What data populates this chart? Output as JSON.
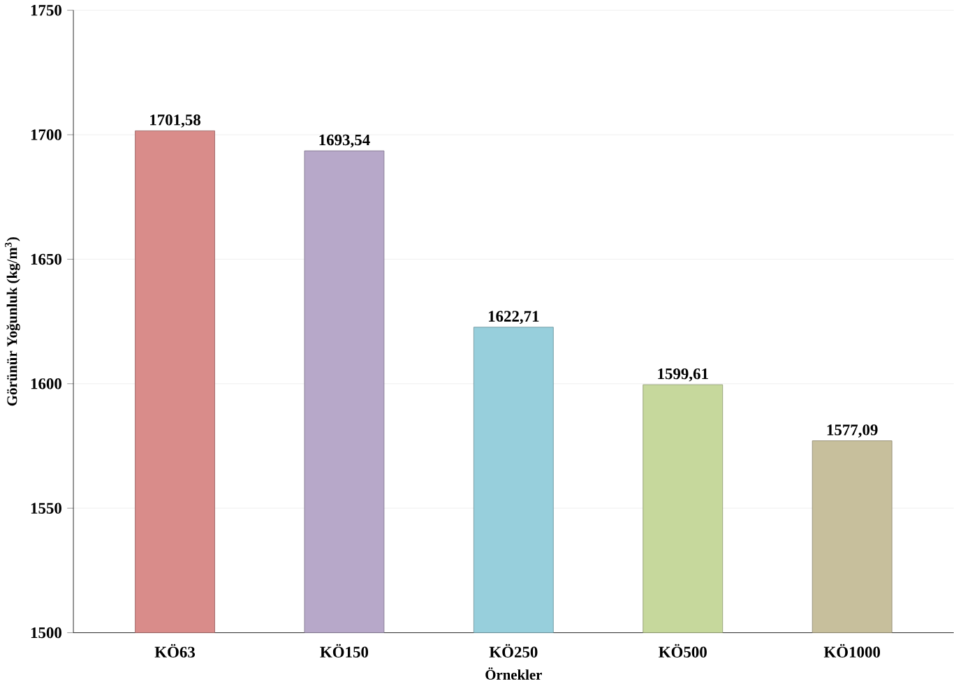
{
  "chart_data": {
    "type": "bar",
    "xlabel": "Örnekler",
    "ylabel": "Görünür Yoğunluk (kg/m$^{3}$)",
    "categories": [
      "KÖ63",
      "KÖ150",
      "KÖ250",
      "KÖ500",
      "KÖ1000"
    ],
    "values": [
      1701.58,
      1693.54,
      1622.71,
      1599.61,
      1577.09
    ],
    "value_labels": [
      "1701,58",
      "1693,54",
      "1622,71",
      "1599,61",
      "1577,09"
    ],
    "colors": [
      "#d98c8a",
      "#b7a8c9",
      "#97cfdc",
      "#c6d89c",
      "#c7bf9c"
    ],
    "ylim": [
      1500,
      1750
    ],
    "yticks": [
      1500,
      1550,
      1600,
      1650,
      1700,
      1750
    ],
    "grid": "y"
  }
}
